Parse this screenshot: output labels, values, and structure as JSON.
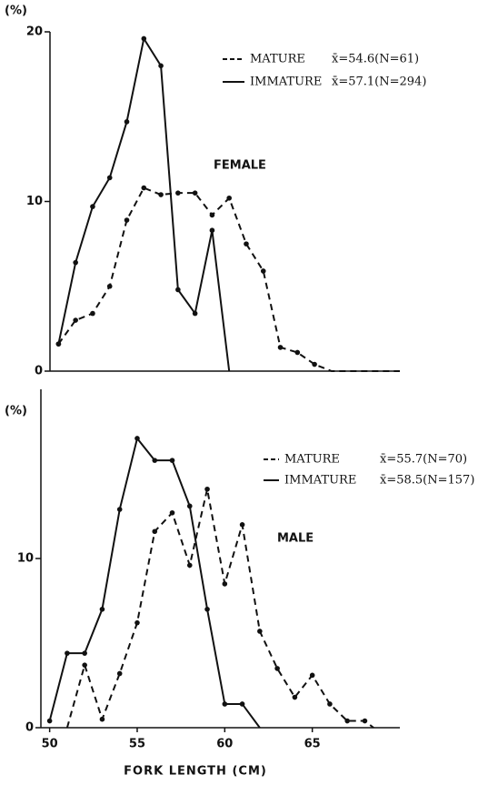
{
  "chart_data": [
    {
      "type": "line",
      "label": "FEMALE",
      "y_unit": "(%)",
      "x": [
        50,
        51,
        52,
        53,
        54,
        55,
        56,
        57,
        58,
        59,
        60,
        61,
        62,
        63,
        64,
        65,
        66,
        70
      ],
      "xlim": [
        49.5,
        70
      ],
      "ylim": [
        0,
        20
      ],
      "yticks": [
        0,
        10,
        20
      ],
      "series": [
        {
          "name": "MATURE",
          "stat": "x̄=54.6(N=61)",
          "color": "#111",
          "dashed": true,
          "values": [
            1.6,
            3.0,
            3.4,
            5.0,
            8.9,
            10.8,
            10.4,
            10.5,
            10.5,
            9.2,
            10.2,
            7.5,
            5.9,
            1.4,
            1.1,
            0.4,
            0,
            0
          ]
        },
        {
          "name": "IMMATURE",
          "stat": "x̄=57.1(N=294)",
          "color": "#111",
          "dashed": false,
          "values": [
            1.6,
            6.4,
            9.7,
            11.4,
            14.7,
            19.6,
            18.0,
            4.8,
            3.4,
            8.3,
            0,
            null,
            null,
            null,
            null,
            null,
            null,
            null
          ]
        }
      ]
    },
    {
      "type": "line",
      "label": "MALE",
      "y_unit": "(%)",
      "x_label": "FORK LENGTH (CM)",
      "x": [
        50,
        51,
        52,
        53,
        54,
        55,
        56,
        57,
        58,
        59,
        60,
        61,
        62,
        63,
        64,
        65,
        66,
        67,
        68,
        68.5
      ],
      "xlim": [
        49.5,
        70
      ],
      "ylim": [
        0,
        20
      ],
      "yticks": [
        0,
        10
      ],
      "xticks": [
        50,
        55,
        60,
        65
      ],
      "series": [
        {
          "name": "MATURE",
          "stat": "x̄=55.7(N=70)",
          "color": "#111",
          "dashed": true,
          "values": [
            null,
            0,
            3.7,
            0.5,
            3.2,
            6.2,
            11.6,
            12.7,
            9.6,
            14.1,
            8.5,
            12.0,
            5.7,
            3.5,
            1.8,
            3.1,
            1.4,
            0.4,
            0.4,
            0
          ]
        },
        {
          "name": "IMMATURE",
          "stat": "x̄=58.5(N=157)",
          "color": "#111",
          "dashed": false,
          "values": [
            0.4,
            4.4,
            4.4,
            7.0,
            12.9,
            17.1,
            15.8,
            15.8,
            13.1,
            7.0,
            1.4,
            1.4,
            0,
            null,
            null,
            null,
            null,
            null,
            null,
            null
          ]
        }
      ]
    }
  ]
}
